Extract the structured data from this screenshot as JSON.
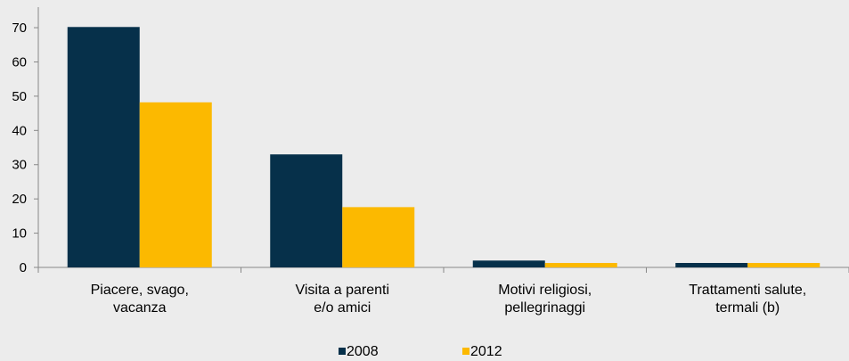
{
  "chart_data": {
    "type": "bar",
    "categories": [
      [
        "Piacere, svago,",
        "vacanza"
      ],
      [
        "Visita a parenti",
        "e/o amici"
      ],
      [
        "Motivi religiosi,",
        "pellegrinaggi"
      ],
      [
        "Trattamenti salute,",
        "termali (b)"
      ]
    ],
    "series": [
      {
        "name": "2008",
        "color": "#06304a",
        "values": [
          70.2,
          33.0,
          2.0,
          1.3
        ]
      },
      {
        "name": "2012",
        "color": "#fcb900",
        "values": [
          48.2,
          17.6,
          1.3,
          1.3
        ]
      }
    ],
    "yticks": [
      "0",
      "10",
      "20",
      "30",
      "40",
      "50",
      "60",
      "70"
    ],
    "ylim": [
      0,
      76
    ],
    "grid": false,
    "legend_position": "bottom-center"
  }
}
